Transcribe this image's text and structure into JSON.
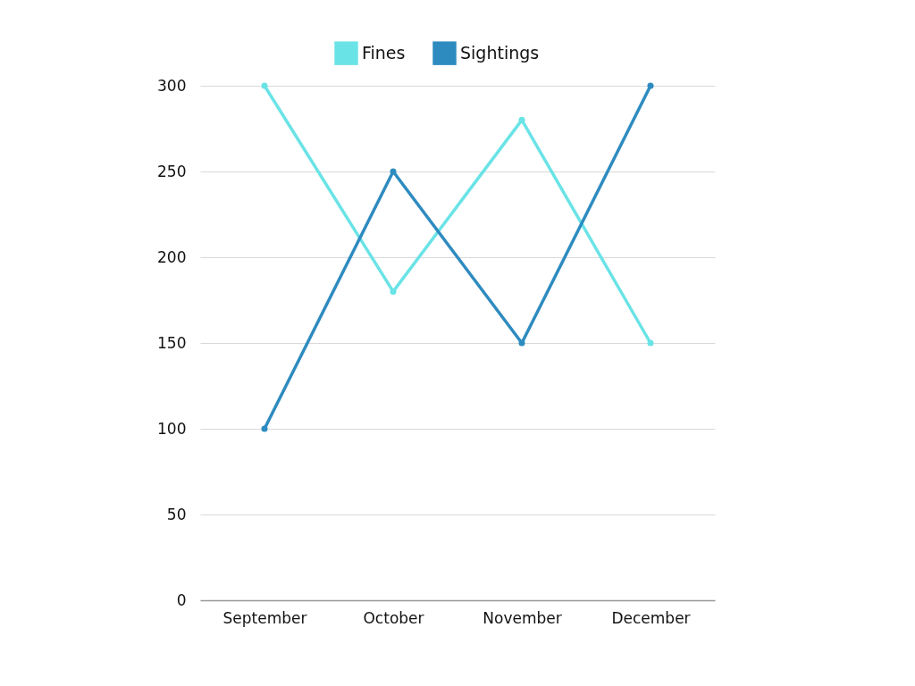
{
  "chart_data": {
    "type": "line",
    "categories": [
      "September",
      "October",
      "November",
      "December"
    ],
    "series": [
      {
        "name": "Fines",
        "color": "#6ae3e6",
        "values": [
          300,
          180,
          280,
          150
        ]
      },
      {
        "name": "Sightings",
        "color": "#2e8bc0",
        "values": [
          100,
          250,
          150,
          300
        ]
      }
    ],
    "ylim": [
      0,
      300
    ],
    "yticks": [
      0,
      50,
      100,
      150,
      200,
      250,
      300
    ],
    "grid": "y",
    "legend": "top",
    "marker": "circle"
  }
}
